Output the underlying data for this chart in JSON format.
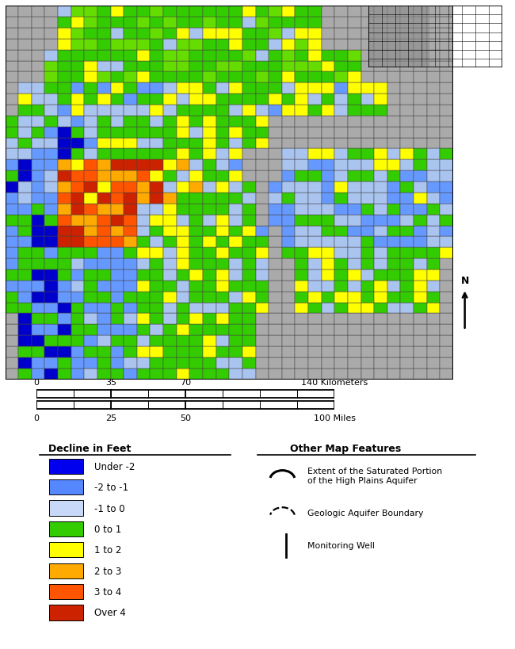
{
  "legend_bg": "#b0b0b0",
  "legend_items": [
    {
      "label": "Under -2",
      "color": "#0000ee"
    },
    {
      "label": "-2 to -1",
      "color": "#5588ff"
    },
    {
      "label": "-1 to 0",
      "color": "#c8d8f8"
    },
    {
      "label": "0 to 1",
      "color": "#33cc00"
    },
    {
      "label": "1 to 2",
      "color": "#ffff00"
    },
    {
      "label": "2 to 3",
      "color": "#ffaa00"
    },
    {
      "label": "3 to 4",
      "color": "#ff5500"
    },
    {
      "label": "Over 4",
      "color": "#cc2200"
    }
  ],
  "legend_left_title": "Decline in Feet",
  "legend_right_title": "Other Map Features",
  "scalebar_km_ticks": [
    0.0,
    0.25,
    0.5,
    1.0
  ],
  "scalebar_km_labels": [
    "0",
    "35",
    "70",
    "140 Kilometers"
  ],
  "scalebar_mi_ticks": [
    0.0,
    0.25,
    0.5,
    1.0
  ],
  "scalebar_mi_labels": [
    "0",
    "25",
    "50",
    "100 Miles"
  ],
  "map_bg": "#aaaaaa",
  "grid_color": "#444444"
}
